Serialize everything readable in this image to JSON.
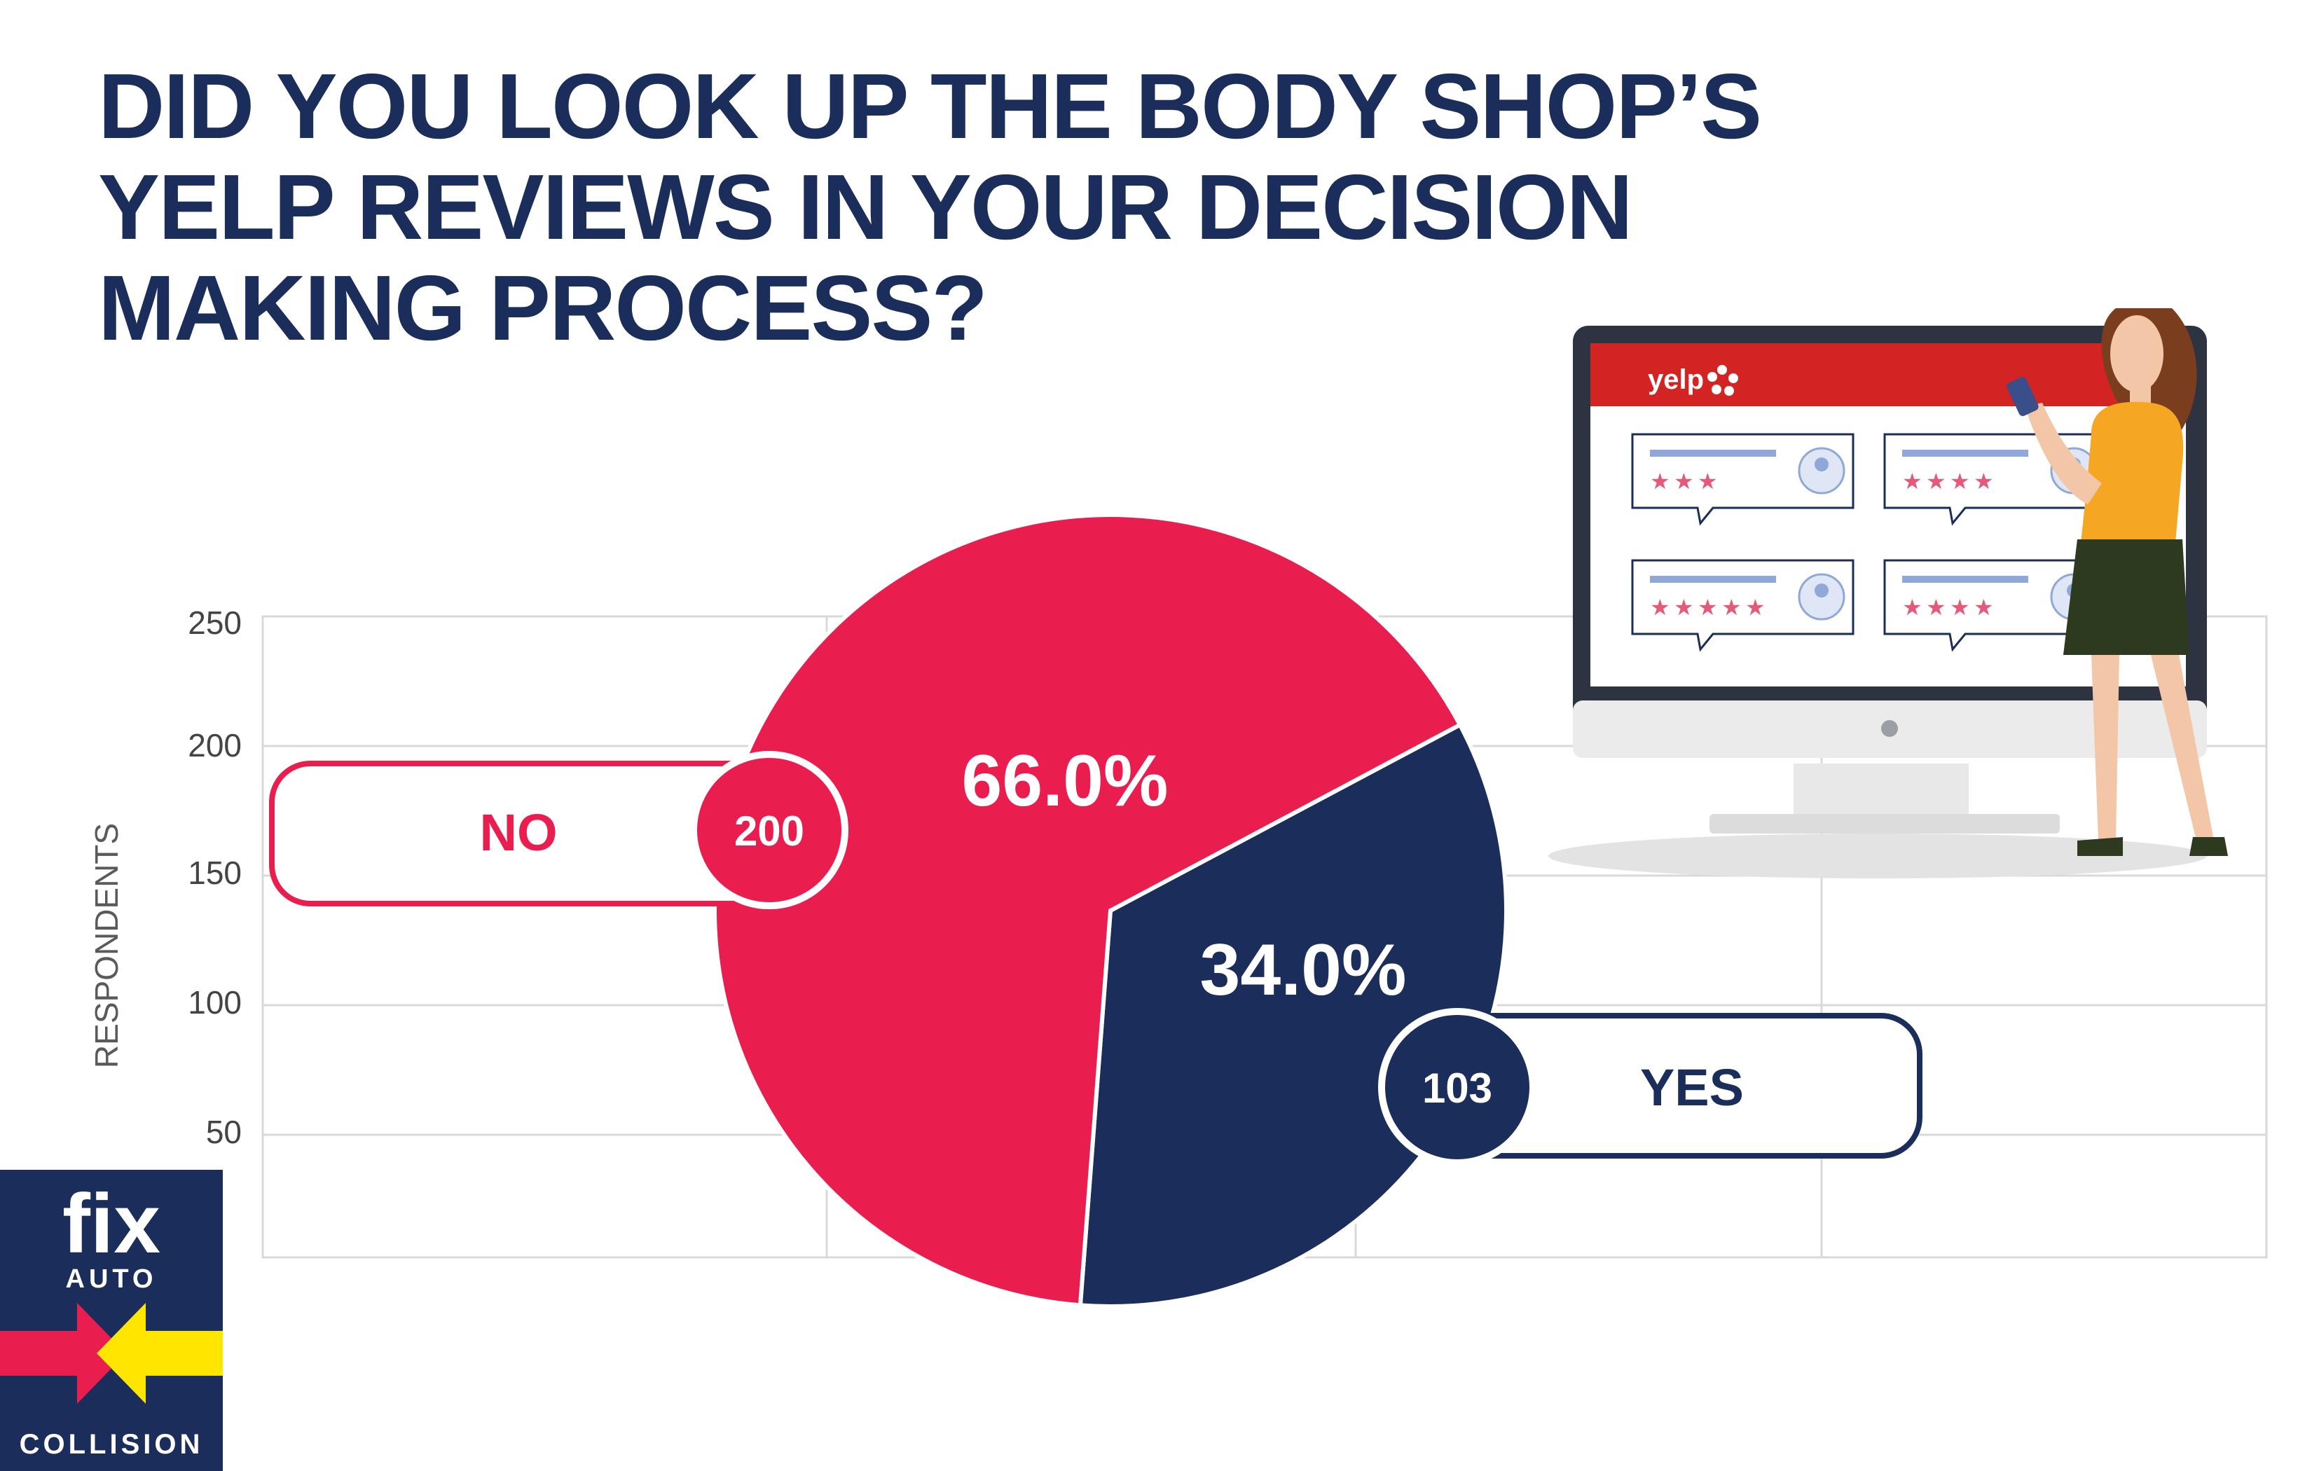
{
  "title": {
    "line1": "DID YOU LOOK UP THE BODY SHOP’S",
    "line2": "YELP REVIEWS IN YOUR DECISION",
    "line3": "MAKING PROCESS?"
  },
  "colors": {
    "title": "#1b2d5a",
    "no": "#e91d4e",
    "yes": "#1b2d5a",
    "grid": "#d9d9d9"
  },
  "chart_data": {
    "type": "pie",
    "ylabel": "RESPONDENTS",
    "yticks": [
      "250",
      "200",
      "150",
      "100",
      "50"
    ],
    "grid": true,
    "slices": [
      {
        "label": "NO",
        "value": 200,
        "percent": "66.0%",
        "color": "#e91d4e"
      },
      {
        "label": "YES",
        "value": 103,
        "percent": "34.0%",
        "color": "#1b2d5a"
      }
    ]
  },
  "illustration": {
    "brand": "yelp",
    "review_stars": [
      3,
      4,
      5,
      4
    ]
  },
  "logo": {
    "word1": "fix",
    "word2": "AUTO",
    "word3": "COLLISION"
  }
}
